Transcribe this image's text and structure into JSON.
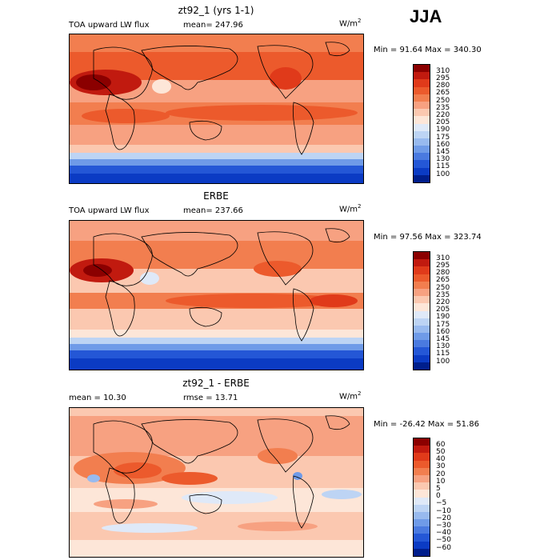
{
  "season": "JJA",
  "panels": [
    {
      "title": "zt92_1 (yrs 1-1)",
      "left_label": "TOA upward LW flux",
      "stat": "mean= 247.96",
      "units": "W/m",
      "units_exp": "2",
      "minmax": "Min =  91.64 Max = 340.30",
      "colorbar": {
        "levels": [
          "310",
          "295",
          "280",
          "265",
          "250",
          "235",
          "220",
          "205",
          "190",
          "175",
          "160",
          "145",
          "130",
          "115",
          "100"
        ],
        "colors": [
          "#8b0000",
          "#c11a0f",
          "#e03a1a",
          "#ec5a2c",
          "#f27e4f",
          "#f7a181",
          "#fbc8b0",
          "#fde6d8",
          "#dfe9f8",
          "#bdd4f4",
          "#98baef",
          "#6f9be8",
          "#4a7ae0",
          "#2457d6",
          "#0b3bc4",
          "#001e8c"
        ]
      }
    },
    {
      "title": "ERBE",
      "left_label": "TOA upward LW flux",
      "stat": "mean= 237.66",
      "units": "W/m",
      "units_exp": "2",
      "minmax": "Min =  97.56 Max = 323.74",
      "colorbar": {
        "levels": [
          "310",
          "295",
          "280",
          "265",
          "250",
          "235",
          "220",
          "205",
          "190",
          "175",
          "160",
          "145",
          "130",
          "115",
          "100"
        ],
        "colors": [
          "#8b0000",
          "#c11a0f",
          "#e03a1a",
          "#ec5a2c",
          "#f27e4f",
          "#f7a181",
          "#fbc8b0",
          "#fde6d8",
          "#dfe9f8",
          "#bdd4f4",
          "#98baef",
          "#6f9be8",
          "#4a7ae0",
          "#2457d6",
          "#0b3bc4",
          "#001e8c"
        ]
      }
    },
    {
      "title": "zt92_1 - ERBE",
      "left_label": "mean =  10.30",
      "stat": "rmse =  13.71",
      "units": "W/m",
      "units_exp": "2",
      "minmax": "Min = -26.42 Max =  51.86",
      "colorbar": {
        "levels": [
          "60",
          "50",
          "40",
          "30",
          "20",
          "10",
          "5",
          "0",
          "−5",
          "−10",
          "−20",
          "−30",
          "−40",
          "−50",
          "−60"
        ],
        "colors": [
          "#8b0000",
          "#c11a0f",
          "#e03a1a",
          "#ec5a2c",
          "#f27e4f",
          "#f7a181",
          "#fbc8b0",
          "#fde6d8",
          "#dfe9f8",
          "#bdd4f4",
          "#98baef",
          "#6f9be8",
          "#4a7ae0",
          "#2457d6",
          "#0b3bc4",
          "#001e8c"
        ]
      }
    }
  ]
}
